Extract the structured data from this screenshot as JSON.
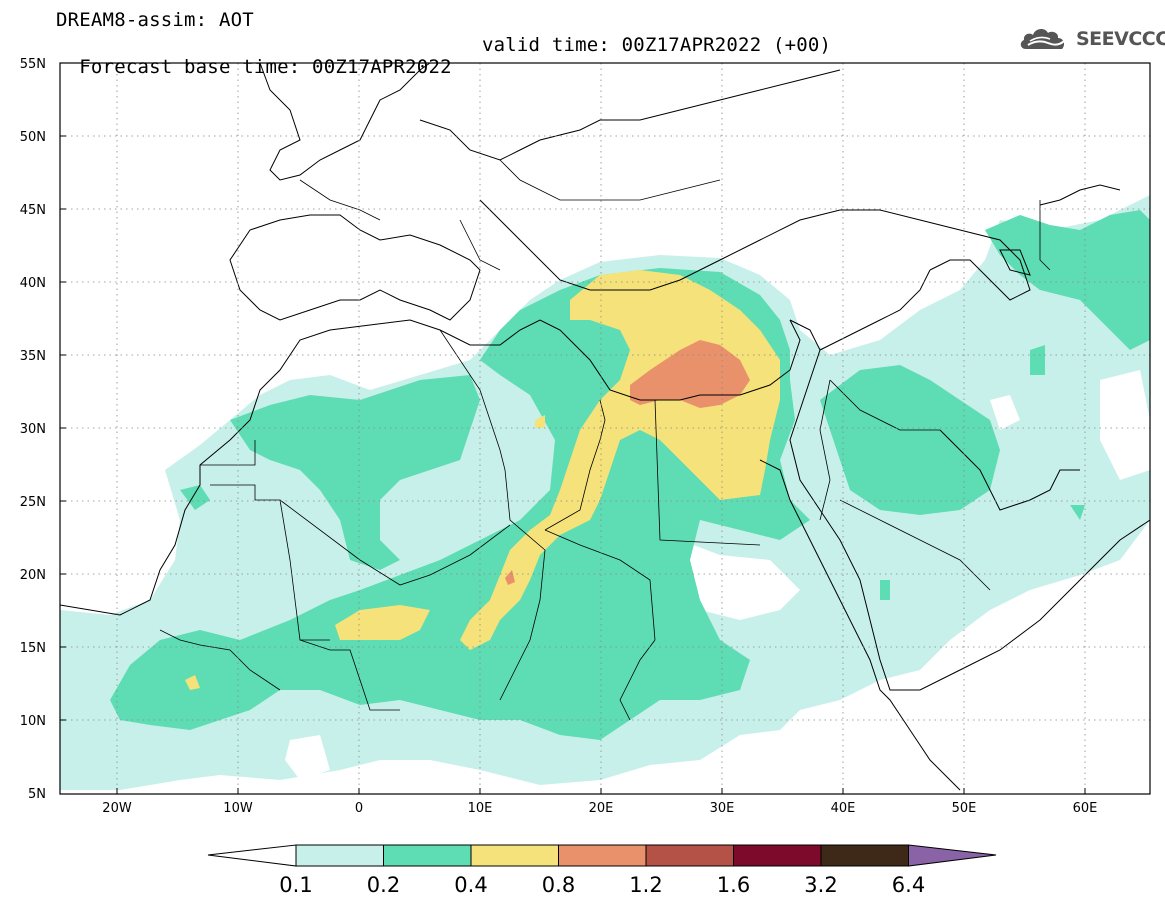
{
  "title": {
    "line1": "DREAM8-assim: AOT",
    "base_time": "Forecast base time: 00Z17APR2022",
    "valid_time": "valid time: 00Z17APR2022 (+00)"
  },
  "logo": {
    "text": "SEEVCCC",
    "icon": "cloud-logo-icon"
  },
  "map": {
    "lon_range": [
      -25,
      65
    ],
    "lat_range": [
      5,
      55
    ],
    "lon_ticks": [
      "20W",
      "10W",
      "0",
      "10E",
      "20E",
      "30E",
      "40E",
      "50E",
      "60E"
    ],
    "lat_ticks": [
      "5N",
      "10N",
      "15N",
      "20N",
      "25N",
      "30N",
      "35N",
      "40N",
      "45N",
      "50N",
      "55N"
    ],
    "grid": "dotted"
  },
  "colorbar": {
    "labels": [
      "0.1",
      "0.2",
      "0.4",
      "0.8",
      "1.2",
      "1.6",
      "3.2",
      "6.4"
    ],
    "colors": [
      "#c7f0ea",
      "#5edcb3",
      "#f5e27a",
      "#e9916a",
      "#b55248",
      "#7d0a2b",
      "#3e2818",
      "#8a63a6"
    ]
  }
}
